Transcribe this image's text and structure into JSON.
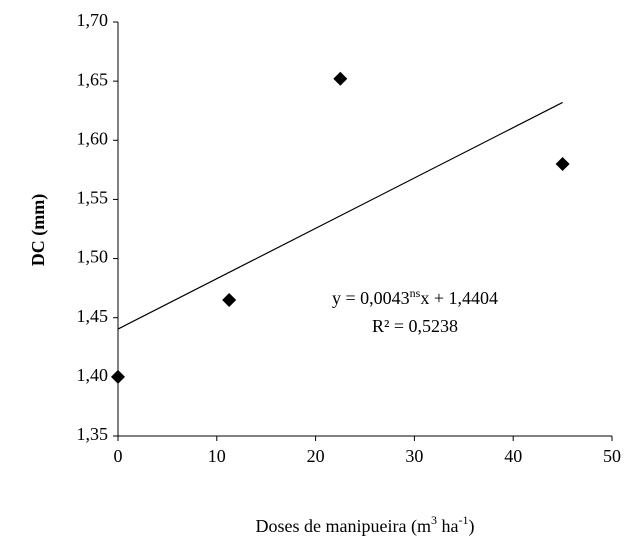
{
  "chart_data": {
    "type": "scatter",
    "ylabel": "DC (mm)",
    "xlabel_parts": [
      "Doses de manipueira (m",
      "3",
      " ha",
      "-1",
      ")"
    ],
    "x": [
      0,
      11.25,
      22.5,
      45
    ],
    "series": [
      {
        "color": "#000000",
        "values": [
          1.4,
          1.465,
          1.652,
          1.58
        ]
      }
    ],
    "trendline": {
      "color": "#000000",
      "x": [
        0,
        45
      ],
      "values": [
        1.4404,
        1.632
      ]
    },
    "equation": {
      "before": "y = 0,0043",
      "sup": "ns",
      "after": "x + 1,4404"
    },
    "r2": "R² = 0,5238",
    "xlim": [
      0,
      50
    ],
    "xticks": [
      0,
      10,
      20,
      30,
      40,
      50
    ],
    "ylim": [
      1.35,
      1.7
    ],
    "yticks": [
      {
        "value": 1.35,
        "label": "1,35"
      },
      {
        "value": 1.4,
        "label": "1,40"
      },
      {
        "value": 1.45,
        "label": "1,45"
      },
      {
        "value": 1.5,
        "label": "1,50"
      },
      {
        "value": 1.55,
        "label": "1,55"
      },
      {
        "value": 1.6,
        "label": "1,60"
      },
      {
        "value": 1.65,
        "label": "1,65"
      },
      {
        "value": 1.7,
        "label": "1,70"
      }
    ]
  }
}
